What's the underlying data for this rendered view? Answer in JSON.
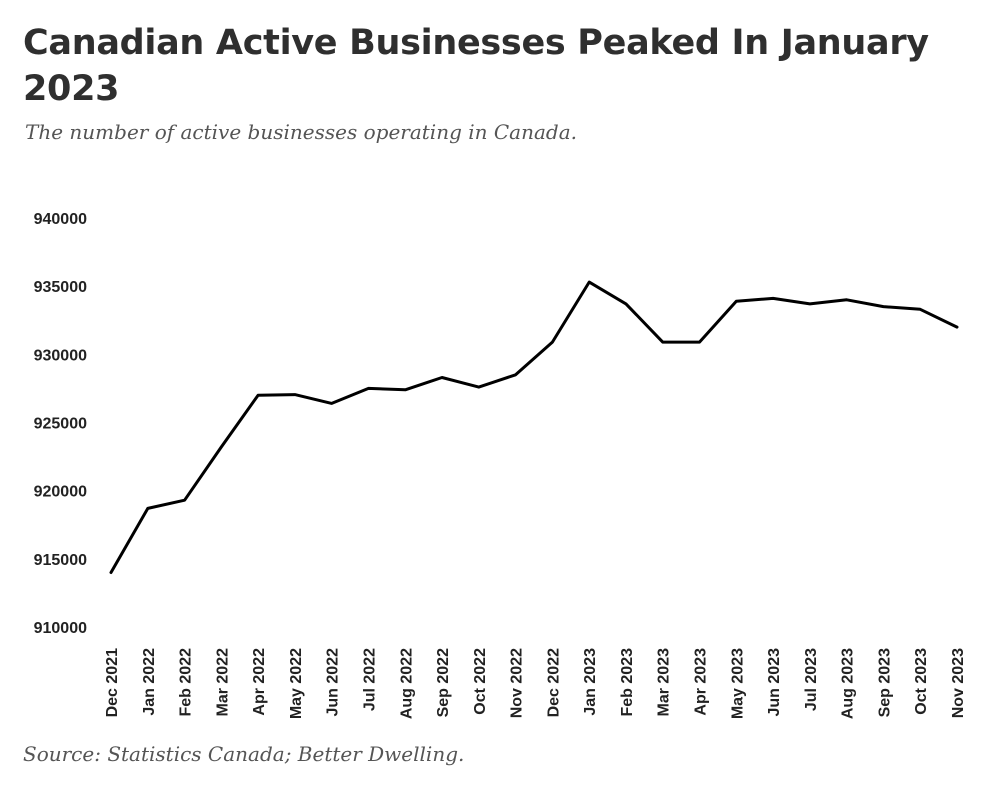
{
  "chart_data": {
    "type": "line",
    "title": "Canadian Active Businesses Peaked In January 2023",
    "subtitle": "The number of active businesses operating in Canada.",
    "xlabel": "",
    "ylabel": "",
    "ylim": [
      910000,
      940000
    ],
    "yticks": [
      "910000",
      "915000",
      "920000",
      "925000",
      "930000",
      "935000",
      "940000"
    ],
    "grid": false,
    "line_color": "#000000",
    "categories": [
      "Dec 2021",
      "Jan 2022",
      "Feb 2022",
      "Mar 2022",
      "Apr 2022",
      "May 2022",
      "Jun 2022",
      "Jul 2022",
      "Aug 2022",
      "Sep 2022",
      "Oct 2022",
      "Nov 2022",
      "Dec 2022",
      "Jan 2023",
      "Feb 2023",
      "Mar 2023",
      "Apr 2023",
      "May 2023",
      "Jun 2023",
      "Jul 2023",
      "Aug 2023",
      "Sep 2023",
      "Oct 2023",
      "Nov 2023"
    ],
    "series": [
      {
        "values": [
          914000,
          918700,
          919300,
          923200,
          927000,
          927050,
          926400,
          927500,
          927400,
          928300,
          927600,
          928500,
          930900,
          935300,
          933700,
          930900,
          930900,
          933900,
          934100,
          933700,
          934000,
          933500,
          933300,
          932000
        ]
      }
    ]
  },
  "source": "Source: Statistics Canada; Better Dwelling."
}
